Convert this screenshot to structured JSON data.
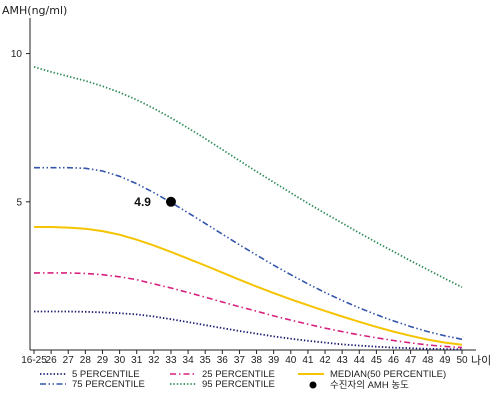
{
  "chart_data": {
    "type": "line",
    "ylabel": "AMH(ng/ml)",
    "xlabel": "나이",
    "categories": [
      "16-25",
      "26",
      "27",
      "28",
      "29",
      "30",
      "31",
      "32",
      "33",
      "34",
      "35",
      "36",
      "37",
      "38",
      "39",
      "40",
      "41",
      "42",
      "43",
      "44",
      "45",
      "46",
      "47",
      "48",
      "49",
      "50"
    ],
    "yticks": [
      5,
      10
    ],
    "ylim": [
      0,
      11.2
    ],
    "grid": false,
    "legend_position": "bottom",
    "series": [
      {
        "name": "5 PERCENTILE",
        "color": "#1a1a6e",
        "dash": "dotted",
        "values": [
          1.3,
          1.3,
          1.3,
          1.29,
          1.27,
          1.24,
          1.2,
          1.13,
          1.04,
          0.94,
          0.84,
          0.74,
          0.64,
          0.55,
          0.46,
          0.38,
          0.31,
          0.25,
          0.19,
          0.15,
          0.11,
          0.08,
          0.06,
          0.04,
          0.03,
          0.02
        ]
      },
      {
        "name": "25 PERCENTILE",
        "color": "#d6207e",
        "dash": "dash-dot",
        "values": [
          2.6,
          2.6,
          2.6,
          2.58,
          2.54,
          2.47,
          2.37,
          2.23,
          2.09,
          1.94,
          1.78,
          1.62,
          1.46,
          1.31,
          1.15,
          1.01,
          0.87,
          0.74,
          0.62,
          0.51,
          0.41,
          0.32,
          0.24,
          0.17,
          0.12,
          0.08
        ]
      },
      {
        "name": "MEDIAN(50 PERCENTILE)",
        "color": "#f5c400",
        "dash": "solid",
        "values": [
          4.15,
          4.15,
          4.13,
          4.09,
          4.01,
          3.89,
          3.72,
          3.53,
          3.31,
          3.08,
          2.85,
          2.61,
          2.37,
          2.14,
          1.92,
          1.71,
          1.51,
          1.32,
          1.13,
          0.95,
          0.78,
          0.62,
          0.48,
          0.35,
          0.25,
          0.18
        ]
      },
      {
        "name": "75 PERCENTILE",
        "color": "#3355aa",
        "dash": "dash-dot-dot",
        "values": [
          6.15,
          6.15,
          6.15,
          6.13,
          6.04,
          5.86,
          5.61,
          5.31,
          4.98,
          4.63,
          4.27,
          3.91,
          3.55,
          3.2,
          2.86,
          2.54,
          2.23,
          1.94,
          1.67,
          1.42,
          1.19,
          0.98,
          0.79,
          0.62,
          0.48,
          0.36
        ]
      },
      {
        "name": "95 PERCENTILE",
        "color": "#2e8b57",
        "dash": "dotted",
        "values": [
          9.55,
          9.38,
          9.23,
          9.08,
          8.9,
          8.69,
          8.44,
          8.15,
          7.83,
          7.49,
          7.13,
          6.76,
          6.39,
          6.02,
          5.66,
          5.3,
          4.95,
          4.61,
          4.28,
          3.95,
          3.63,
          3.32,
          3.01,
          2.71,
          2.41,
          2.12
        ]
      }
    ],
    "highlight": {
      "label": "4.9",
      "x": "33",
      "y": 5.0,
      "legend": "수진자의 AMH 농도"
    }
  }
}
